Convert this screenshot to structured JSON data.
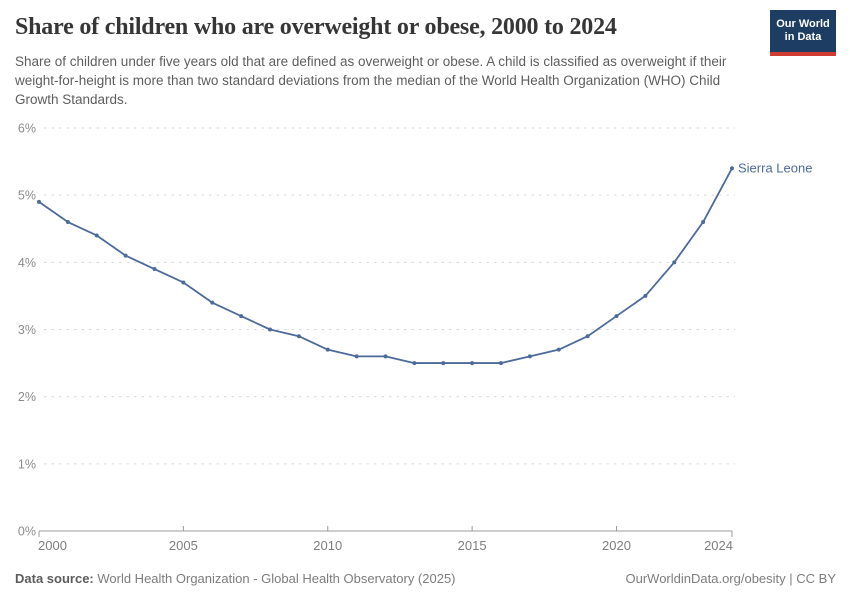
{
  "header": {
    "title": "Share of children who are overweight or obese, 2000 to 2024",
    "subtitle": "Share of children under five years old that are defined as overweight or obese. A child is classified as overweight if their weight-for-height is more than two standard deviations from the median of the World Health Organization (WHO) Child Growth Standards.",
    "logo": {
      "line1": "Our World",
      "line2": "in Data",
      "bg_color": "#1d3d63",
      "accent_color": "#d13c32"
    }
  },
  "chart_data": {
    "type": "line",
    "title": "Share of children who are overweight or obese, 2000 to 2024",
    "xlabel": "",
    "ylabel": "",
    "xlim": [
      2000,
      2024
    ],
    "ylim": [
      0,
      6
    ],
    "grid": "horizontal-dashed",
    "legend_position": "end-of-line-label",
    "xticks": [
      2000,
      2005,
      2010,
      2015,
      2020,
      2024
    ],
    "xtick_labels": [
      "2000",
      "2005",
      "2010",
      "2015",
      "2020",
      "2024"
    ],
    "yticks": [
      0,
      1,
      2,
      3,
      4,
      5,
      6
    ],
    "ytick_labels": [
      "0%",
      "1%",
      "2%",
      "3%",
      "4%",
      "5%",
      "6%"
    ],
    "x": [
      2000,
      2001,
      2002,
      2003,
      2004,
      2005,
      2006,
      2007,
      2008,
      2009,
      2010,
      2011,
      2012,
      2013,
      2014,
      2015,
      2016,
      2017,
      2018,
      2019,
      2020,
      2021,
      2022,
      2023,
      2024
    ],
    "series": [
      {
        "name": "Sierra Leone",
        "color": "#4c6a9c",
        "values": [
          4.9,
          4.6,
          4.4,
          4.1,
          3.9,
          3.7,
          3.4,
          3.2,
          3.0,
          2.9,
          2.7,
          2.6,
          2.6,
          2.5,
          2.5,
          2.5,
          2.5,
          2.6,
          2.7,
          2.9,
          3.2,
          3.5,
          4.0,
          4.6,
          5.4
        ]
      }
    ]
  },
  "footer": {
    "source_label": "Data source:",
    "source_text": " World Health Organization - Global Health Observatory (2025)",
    "credit": "OurWorldinData.org/obesity | CC BY"
  }
}
